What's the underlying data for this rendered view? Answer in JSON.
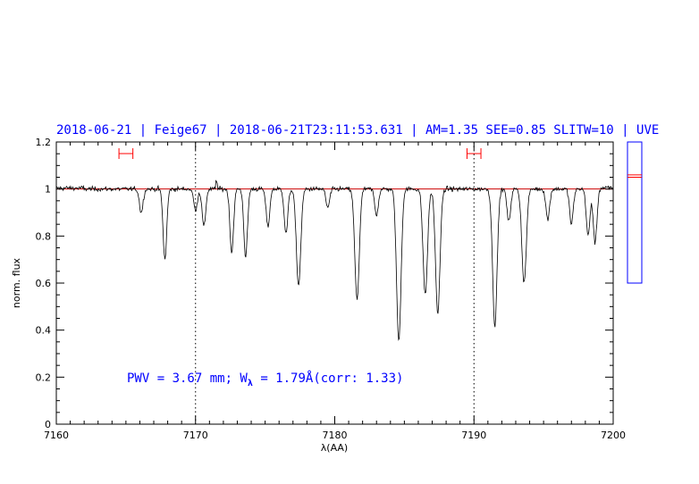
{
  "header": {
    "text": "2018-06-21 | Feige67 | 2018-06-21T23:11:53.631 | AM=1.35  SEE=0.85  SLITW=10 | UVE"
  },
  "annotation": {
    "pwv_text": "PWV = 3.67 mm; W",
    "lambda_sub": "λ",
    "w_text": " = 1.79Å(corr: 1.33)"
  },
  "colors": {
    "spectrum": "#000000",
    "continuum": "#cc0000",
    "header": "#0000ff",
    "indicator_box": "#0000ff",
    "markers": "#ff0000"
  },
  "chart_data": {
    "type": "line",
    "xlabel": "λ(AA)",
    "ylabel": "norm. flux",
    "xlim": [
      7160,
      7200
    ],
    "ylim": [
      0,
      1.2
    ],
    "x_ticks": [
      "7160",
      "7170",
      "7180",
      "7190",
      "7200"
    ],
    "y_ticks": [
      "0",
      "0.2",
      "0.4",
      "0.6",
      "0.8",
      "1",
      "1.2"
    ],
    "continuum_level": 1.0,
    "reference_lines_x": [
      7170,
      7190
    ],
    "windows": [
      {
        "center": 7165.0,
        "range": [
          7164.5,
          7165.5
        ]
      },
      {
        "center": 7190.0,
        "range": [
          7189.5,
          7190.5
        ]
      }
    ],
    "side_indicator": {
      "range": [
        0.6,
        1.2
      ],
      "levels": [
        1.05,
        1.06
      ]
    },
    "absorption_lines": [
      {
        "center": 7166.1,
        "depth": 0.1
      },
      {
        "center": 7167.8,
        "depth": 0.3
      },
      {
        "center": 7170.0,
        "depth": 0.09
      },
      {
        "center": 7170.6,
        "depth": 0.16
      },
      {
        "center": 7172.6,
        "depth": 0.27
      },
      {
        "center": 7173.6,
        "depth": 0.29
      },
      {
        "center": 7175.2,
        "depth": 0.16
      },
      {
        "center": 7176.5,
        "depth": 0.19
      },
      {
        "center": 7177.4,
        "depth": 0.41
      },
      {
        "center": 7179.5,
        "depth": 0.08
      },
      {
        "center": 7181.6,
        "depth": 0.47
      },
      {
        "center": 7183.0,
        "depth": 0.11
      },
      {
        "center": 7184.6,
        "depth": 0.65
      },
      {
        "center": 7186.5,
        "depth": 0.45
      },
      {
        "center": 7187.4,
        "depth": 0.53
      },
      {
        "center": 7191.5,
        "depth": 0.58
      },
      {
        "center": 7192.5,
        "depth": 0.14
      },
      {
        "center": 7193.6,
        "depth": 0.4
      },
      {
        "center": 7195.3,
        "depth": 0.13
      },
      {
        "center": 7197.0,
        "depth": 0.15
      },
      {
        "center": 7198.2,
        "depth": 0.2
      },
      {
        "center": 7198.7,
        "depth": 0.23
      }
    ]
  }
}
